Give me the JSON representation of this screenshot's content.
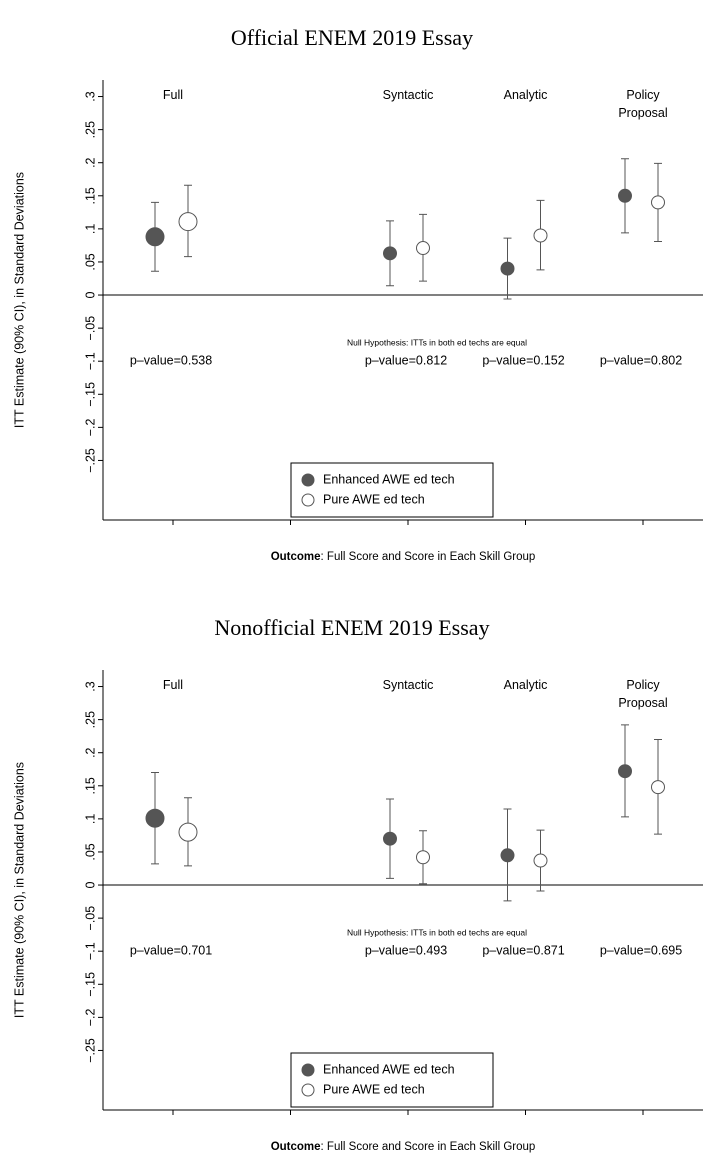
{
  "chart_data": [
    {
      "type": "errorbar",
      "title": "Official ENEM 2019 Essay",
      "y_label": "ITT Estimate (90% CI), in Standard Deviations",
      "x_label_bold": "Outcome",
      "x_label": ": Full Score and Score in Each Skill Group",
      "note": "Null Hypothesis: ITTs in both ed techs are equal",
      "categories": [
        "Full",
        null,
        "Syntactic",
        "Analytic",
        "Policy Proposal"
      ],
      "p_values": [
        "p–value=0.538",
        null,
        "p–value=0.812",
        "p–value=0.152",
        "p–value=0.802"
      ],
      "series": [
        {
          "name": "Enhanced AWE ed tech",
          "color": "#555555",
          "filled": true,
          "values": [
            0.088,
            null,
            0.063,
            0.04,
            0.15
          ],
          "lower": [
            0.036,
            null,
            0.014,
            -0.006,
            0.094
          ],
          "upper": [
            0.14,
            null,
            0.112,
            0.086,
            0.206
          ]
        },
        {
          "name": "Pure AWE ed tech",
          "color": "#555555",
          "filled": false,
          "values": [
            0.111,
            null,
            0.071,
            0.09,
            0.14
          ],
          "lower": [
            0.058,
            null,
            0.021,
            0.038,
            0.081
          ],
          "upper": [
            0.166,
            null,
            0.122,
            0.143,
            0.199
          ]
        }
      ],
      "ylim": [
        -0.34,
        0.325
      ],
      "yticks": [
        {
          "value": 0.3,
          "label": ".3"
        },
        {
          "value": 0.25,
          "label": ".25"
        },
        {
          "value": 0.2,
          "label": ".2"
        },
        {
          "value": 0.15,
          "label": ".15"
        },
        {
          "value": 0.1,
          "label": ".1"
        },
        {
          "value": 0.05,
          "label": ".05"
        },
        0,
        {
          "value": -0.05,
          "label": "−.05"
        },
        {
          "value": -0.1,
          "label": "−.1"
        },
        {
          "value": -0.15,
          "label": "−.15"
        },
        {
          "value": -0.2,
          "label": "−.2"
        },
        {
          "value": -0.25,
          "label": "−.25"
        }
      ],
      "legend": "bottom-center"
    },
    {
      "type": "errorbar",
      "title": "Nonofficial ENEM 2019 Essay",
      "y_label": "ITT Estimate (90% CI), in Standard Deviations",
      "x_label_bold": "Outcome",
      "x_label": ": Full Score and Score in Each Skill Group",
      "note": "Null Hypothesis: ITTs in both ed techs are equal",
      "categories": [
        "Full",
        null,
        "Syntactic",
        "Analytic",
        "Policy Proposal"
      ],
      "p_values": [
        "p–value=0.701",
        null,
        "p–value=0.493",
        "p–value=0.871",
        "p–value=0.695"
      ],
      "series": [
        {
          "name": "Enhanced AWE ed tech",
          "color": "#555555",
          "filled": true,
          "values": [
            0.101,
            null,
            0.07,
            0.045,
            0.172
          ],
          "lower": [
            0.032,
            null,
            0.01,
            -0.024,
            0.103
          ],
          "upper": [
            0.17,
            null,
            0.13,
            0.115,
            0.242
          ]
        },
        {
          "name": "Pure AWE ed tech",
          "color": "#555555",
          "filled": false,
          "values": [
            0.08,
            null,
            0.042,
            0.037,
            0.148
          ],
          "lower": [
            0.029,
            null,
            0.002,
            -0.009,
            0.077
          ],
          "upper": [
            0.132,
            null,
            0.082,
            0.083,
            0.22
          ]
        }
      ],
      "ylim": [
        -0.34,
        0.325
      ],
      "yticks": [
        {
          "value": 0.3,
          "label": ".3"
        },
        {
          "value": 0.25,
          "label": ".25"
        },
        {
          "value": 0.2,
          "label": ".2"
        },
        {
          "value": 0.15,
          "label": ".15"
        },
        {
          "value": 0.1,
          "label": ".1"
        },
        {
          "value": 0.05,
          "label": ".05"
        },
        0,
        {
          "value": -0.05,
          "label": "−.05"
        },
        {
          "value": -0.1,
          "label": "−.1"
        },
        {
          "value": -0.15,
          "label": "−.15"
        },
        {
          "value": -0.2,
          "label": "−.2"
        },
        {
          "value": -0.25,
          "label": "−.25"
        }
      ],
      "legend": "bottom-center"
    }
  ]
}
